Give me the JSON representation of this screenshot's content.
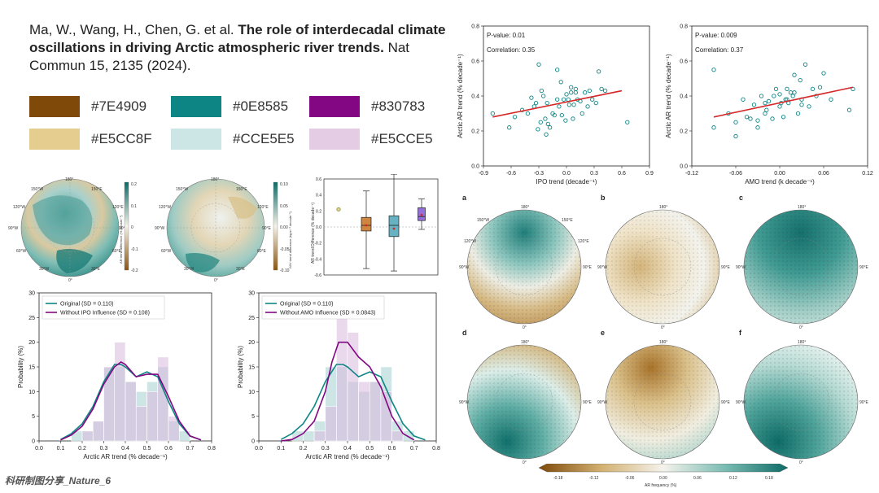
{
  "citation": {
    "authors": "Ma, W., Wang, H., Chen, G. et al.",
    "title": "The role of interdecadal climate oscillations in driving Arctic atmospheric river trends.",
    "journal": "Nat Commun 15, 2135 (2024)."
  },
  "palette": [
    {
      "hex": "#7E4909",
      "label": "#7E4909"
    },
    {
      "hex": "#0E8585",
      "label": "#0E8585"
    },
    {
      "hex": "#830783",
      "label": "#830783"
    },
    {
      "hex": "#E5CC8F",
      "label": "#E5CC8F"
    },
    {
      "hex": "#CCE5E5",
      "label": "#CCE5E5"
    },
    {
      "hex": "#E5CCE5",
      "label": "#E5CCE5"
    }
  ],
  "watermark": "科研制图分享_Nature_6",
  "map_labels": {
    "lon": [
      "180°",
      "150°E",
      "120°E",
      "90°E",
      "60°E",
      "30°E",
      "0°",
      "30°W",
      "60°W",
      "90°W",
      "120°W",
      "150°W"
    ]
  },
  "small_colorbars": {
    "left": {
      "label": "AR trend difference (% decade⁻¹)",
      "ticks": [
        "0.2",
        "0.1",
        "0",
        "-0.1",
        "-0.2"
      ]
    },
    "right": {
      "label": "IWV trend difference (kg m⁻² decade⁻¹)",
      "ticks": [
        "0.10",
        "0.05",
        "0.00",
        "-0.05",
        "-0.10"
      ]
    }
  },
  "boxplot_axis": {
    "ylabel": "AR trend Difference (% decade⁻¹)",
    "yticks": [
      "0.6",
      "0.4",
      "0.2",
      "0.0",
      "-0.2",
      "-0.4",
      "-0.6"
    ]
  },
  "panel_letters": [
    "a",
    "b",
    "c",
    "d",
    "e",
    "f"
  ],
  "bottom_colorbar": {
    "label": "AR frequency (%)",
    "ticks": [
      "-0.18",
      "-0.12",
      "-0.06",
      "0.00",
      "0.06",
      "0.12",
      "0.18"
    ]
  },
  "chart_data": [
    {
      "type": "scatter",
      "title": "",
      "xlabel": "IPO trend (decade⁻¹)",
      "ylabel": "Arctic AR trend (% decade⁻¹)",
      "xlim": [
        -0.9,
        0.9
      ],
      "ylim": [
        0.0,
        0.8
      ],
      "xticks": [
        "-0.9",
        "-0.6",
        "-0.3",
        "0.0",
        "0.3",
        "0.6",
        "0.9"
      ],
      "yticks": [
        "0.0",
        "0.2",
        "0.4",
        "0.6",
        "0.8"
      ],
      "annotations": [
        "P-value: 0.01",
        "Correlation: 0.35"
      ],
      "fit": {
        "x": [
          -0.8,
          0.6
        ],
        "y": [
          0.28,
          0.43
        ]
      },
      "x": [
        -0.8,
        -0.62,
        -0.56,
        -0.48,
        -0.42,
        -0.38,
        -0.35,
        -0.33,
        -0.31,
        -0.3,
        -0.28,
        -0.27,
        -0.25,
        -0.23,
        -0.21,
        -0.2,
        -0.18,
        -0.15,
        -0.13,
        -0.1,
        -0.08,
        -0.06,
        -0.05,
        -0.03,
        -0.01,
        0.0,
        0.02,
        0.03,
        0.05,
        0.07,
        0.08,
        0.1,
        0.12,
        0.15,
        0.17,
        0.2,
        0.23,
        0.25,
        0.28,
        0.32,
        0.35,
        0.38,
        0.42,
        0.66,
        -0.1,
        0.05,
        -0.22,
        0.1
      ],
      "y": [
        0.3,
        0.22,
        0.28,
        0.32,
        0.3,
        0.39,
        0.34,
        0.36,
        0.21,
        0.58,
        0.25,
        0.43,
        0.4,
        0.27,
        0.36,
        0.24,
        0.22,
        0.3,
        0.29,
        0.38,
        0.34,
        0.48,
        0.29,
        0.38,
        0.26,
        0.41,
        0.38,
        0.35,
        0.42,
        0.27,
        0.35,
        0.44,
        0.38,
        0.37,
        0.3,
        0.42,
        0.34,
        0.43,
        0.38,
        0.36,
        0.54,
        0.44,
        0.43,
        0.25,
        0.55,
        0.45,
        0.18,
        0.42
      ]
    },
    {
      "type": "scatter",
      "title": "",
      "xlabel": "AMO trend (k decade⁻¹)",
      "ylabel": "Arctic AR trend (% decade⁻¹)",
      "xlim": [
        -0.12,
        0.12
      ],
      "ylim": [
        0.0,
        0.8
      ],
      "xticks": [
        "-0.12",
        "-0.06",
        "0.00",
        "0.06",
        "0.12"
      ],
      "yticks": [
        "0.0",
        "0.2",
        "0.4",
        "0.6",
        "0.8"
      ],
      "annotations": [
        "P-value: 0.009",
        "Correlation: 0.37"
      ],
      "fit": {
        "x": [
          -0.09,
          0.1
        ],
        "y": [
          0.28,
          0.45
        ]
      },
      "x": [
        -0.09,
        -0.09,
        -0.07,
        -0.06,
        -0.05,
        -0.045,
        -0.04,
        -0.035,
        -0.03,
        -0.025,
        -0.02,
        -0.018,
        -0.015,
        -0.01,
        -0.008,
        -0.005,
        0.0,
        0.002,
        0.005,
        0.008,
        0.01,
        0.012,
        0.015,
        0.018,
        0.02,
        0.025,
        0.028,
        0.03,
        0.035,
        0.04,
        0.045,
        0.05,
        0.055,
        0.06,
        0.07,
        0.095,
        0.1,
        -0.06,
        -0.03,
        0.0,
        0.03,
        0.02,
        -0.02,
        0.01
      ],
      "y": [
        0.22,
        0.55,
        0.3,
        0.25,
        0.38,
        0.28,
        0.27,
        0.35,
        0.22,
        0.4,
        0.36,
        0.32,
        0.37,
        0.27,
        0.4,
        0.44,
        0.41,
        0.36,
        0.28,
        0.38,
        0.44,
        0.36,
        0.42,
        0.4,
        0.52,
        0.3,
        0.49,
        0.38,
        0.58,
        0.34,
        0.44,
        0.4,
        0.45,
        0.53,
        0.38,
        0.32,
        0.44,
        0.17,
        0.26,
        0.34,
        0.35,
        0.42,
        0.3,
        0.38
      ]
    },
    {
      "type": "bar",
      "title": "",
      "xlabel": "Arctic AR trend (% decade⁻¹)",
      "ylabel": "Probability (%)",
      "xlim": [
        0.0,
        0.8
      ],
      "ylim": [
        0,
        30
      ],
      "xticks": [
        "0.0",
        "0.1",
        "0.2",
        "0.3",
        "0.4",
        "0.5",
        "0.6",
        "0.7",
        "0.8"
      ],
      "yticks": [
        "0",
        "5",
        "10",
        "15",
        "20",
        "25",
        "30"
      ],
      "bin_edges": [
        0.15,
        0.2,
        0.25,
        0.3,
        0.35,
        0.4,
        0.45,
        0.5,
        0.55,
        0.6,
        0.65,
        0.7
      ],
      "series": [
        {
          "name": "Original (SD = 0.110)",
          "color": "#0E8585",
          "hist": [
            2,
            2,
            4,
            15,
            15,
            12,
            10,
            12,
            15,
            4,
            2
          ],
          "kde": {
            "x": [
              0.1,
              0.15,
              0.2,
              0.25,
              0.3,
              0.35,
              0.38,
              0.4,
              0.45,
              0.5,
              0.55,
              0.6,
              0.65,
              0.7,
              0.75
            ],
            "y": [
              0.3,
              1.5,
              3.5,
              7,
              12,
              15.5,
              15.5,
              15,
              13,
              14,
              13,
              8,
              3.5,
              1,
              0.2
            ]
          }
        },
        {
          "name": "Without IPO Influence (SD = 0.108)",
          "color": "#830783",
          "hist": [
            0,
            2,
            4,
            15,
            20,
            12,
            7,
            10,
            17,
            5,
            0
          ],
          "kde": {
            "x": [
              0.1,
              0.15,
              0.2,
              0.25,
              0.3,
              0.35,
              0.38,
              0.4,
              0.45,
              0.5,
              0.55,
              0.6,
              0.65,
              0.7,
              0.75
            ],
            "y": [
              0.2,
              1.2,
              3,
              6.5,
              11.5,
              15,
              16,
              15.5,
              13,
              13.5,
              13.5,
              9,
              4,
              1,
              0.2
            ]
          }
        }
      ]
    },
    {
      "type": "bar",
      "title": "",
      "xlabel": "Arctic AR trend (% decade⁻¹)",
      "ylabel": "Probability (%)",
      "xlim": [
        0.0,
        0.8
      ],
      "ylim": [
        0,
        30
      ],
      "xticks": [
        "0.0",
        "0.1",
        "0.2",
        "0.3",
        "0.4",
        "0.5",
        "0.6",
        "0.7",
        "0.8"
      ],
      "yticks": [
        "0",
        "5",
        "10",
        "15",
        "20",
        "25",
        "30"
      ],
      "bin_edges": [
        0.15,
        0.2,
        0.25,
        0.3,
        0.35,
        0.4,
        0.45,
        0.5,
        0.55,
        0.6,
        0.65,
        0.7
      ],
      "series": [
        {
          "name": "Original (SD = 0.110)",
          "color": "#0E8585",
          "hist": [
            2,
            2,
            4,
            15,
            15,
            12,
            10,
            12,
            15,
            4,
            2
          ],
          "kde": {
            "x": [
              0.1,
              0.15,
              0.2,
              0.25,
              0.3,
              0.35,
              0.38,
              0.4,
              0.45,
              0.5,
              0.55,
              0.6,
              0.65,
              0.7,
              0.75
            ],
            "y": [
              0.3,
              1.5,
              3.5,
              7,
              12,
              15.5,
              15.5,
              15,
              13,
              14,
              13,
              8,
              3.5,
              1,
              0.2
            ]
          }
        },
        {
          "name": "Without AMO Influence (SD = 0.0843)",
          "color": "#830783",
          "hist": [
            0,
            0,
            2,
            7,
            25,
            22,
            12,
            12,
            10,
            2,
            0
          ],
          "kde": {
            "x": [
              0.1,
              0.15,
              0.2,
              0.25,
              0.3,
              0.33,
              0.36,
              0.4,
              0.45,
              0.5,
              0.55,
              0.6,
              0.65,
              0.7
            ],
            "y": [
              0,
              0.3,
              1.5,
              4,
              10,
              16,
              20,
              20,
              17,
              15,
              11,
              5,
              1.5,
              0.2
            ]
          }
        }
      ]
    },
    {
      "type": "box",
      "title": "",
      "ylabel": "AR trend Difference (% decade⁻¹)",
      "ylim": [
        -0.6,
        0.6
      ],
      "series": [
        {
          "name": "outlier",
          "values": [
            0.22
          ]
        },
        {
          "name": "box1",
          "color": "#CD853F",
          "min": -0.52,
          "q1": -0.05,
          "median": 0.02,
          "q3": 0.12,
          "max": 0.45,
          "mean": 0.02
        },
        {
          "name": "box2",
          "color": "#66B2C2",
          "min": -0.55,
          "q1": -0.12,
          "median": 0.02,
          "q3": 0.14,
          "max": 0.66,
          "mean": -0.02
        },
        {
          "name": "box3",
          "color": "#9370DB",
          "min": -0.03,
          "q1": 0.08,
          "median": 0.13,
          "q3": 0.24,
          "max": 0.35,
          "mean": 0.15
        }
      ]
    }
  ]
}
